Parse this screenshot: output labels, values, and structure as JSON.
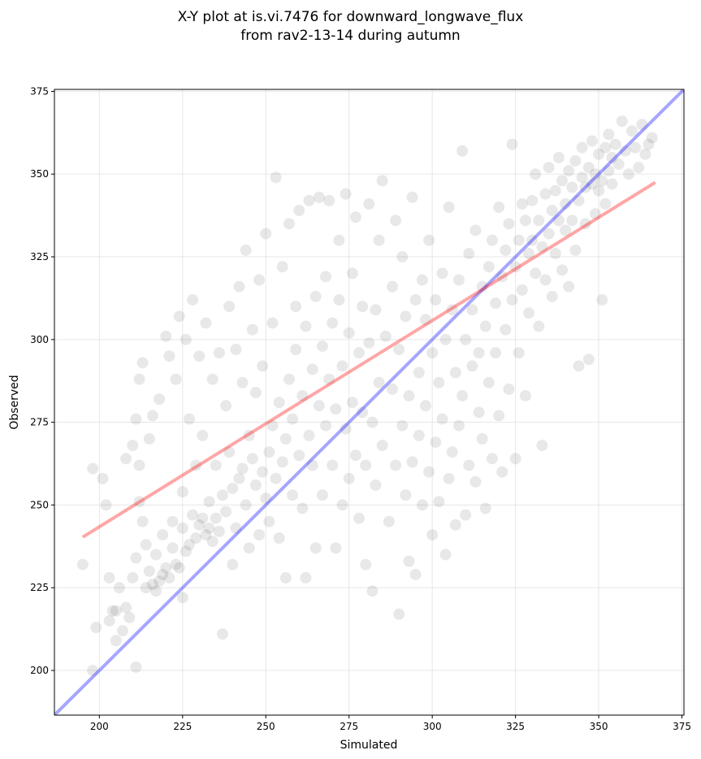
{
  "chart_data": {
    "type": "scatter",
    "title_line1": "X-Y plot at is.vi.7476 for downward_longwave_flux",
    "title_line2": "from rav2-13-14 during autumn",
    "xlabel": "Simulated",
    "ylabel": "Observed",
    "xlim": [
      186.5,
      375.6
    ],
    "ylim": [
      186.5,
      375.6
    ],
    "xticks": [
      200,
      225,
      250,
      275,
      300,
      325,
      350,
      375
    ],
    "yticks": [
      200,
      225,
      250,
      275,
      300,
      325,
      350,
      375
    ],
    "grid": true,
    "point_color": "#000000",
    "point_alpha": 0.09,
    "one_to_one_line": {
      "color": "#0000ff",
      "from": [
        186.5,
        186.5
      ],
      "to": [
        375.6,
        375.6
      ]
    },
    "regression_line": {
      "color": "#ff0000",
      "from": [
        195,
        240.3
      ],
      "to": [
        367,
        347.5
      ]
    },
    "points": [
      [
        195,
        232
      ],
      [
        198,
        200
      ],
      [
        198,
        261
      ],
      [
        199,
        213
      ],
      [
        201,
        258
      ],
      [
        202,
        250
      ],
      [
        203,
        215
      ],
      [
        203,
        228
      ],
      [
        204,
        218
      ],
      [
        205,
        209
      ],
      [
        205,
        218
      ],
      [
        206,
        225
      ],
      [
        207,
        212
      ],
      [
        208,
        264
      ],
      [
        208,
        219
      ],
      [
        209,
        216
      ],
      [
        210,
        228
      ],
      [
        210,
        268
      ],
      [
        211,
        201
      ],
      [
        211,
        234
      ],
      [
        211,
        276
      ],
      [
        212,
        288
      ],
      [
        212,
        251
      ],
      [
        212,
        262
      ],
      [
        213,
        245
      ],
      [
        213,
        293
      ],
      [
        214,
        225
      ],
      [
        214,
        238
      ],
      [
        215,
        230
      ],
      [
        215,
        270
      ],
      [
        216,
        226
      ],
      [
        216,
        277
      ],
      [
        217,
        224
      ],
      [
        217,
        235
      ],
      [
        218,
        227
      ],
      [
        218,
        282
      ],
      [
        219,
        229
      ],
      [
        219,
        241
      ],
      [
        220,
        231
      ],
      [
        220,
        301
      ],
      [
        221,
        228
      ],
      [
        221,
        295
      ],
      [
        222,
        237
      ],
      [
        222,
        245
      ],
      [
        223,
        232
      ],
      [
        223,
        288
      ],
      [
        224,
        231
      ],
      [
        224,
        307
      ],
      [
        225,
        222
      ],
      [
        225,
        243
      ],
      [
        225,
        254
      ],
      [
        226,
        236
      ],
      [
        226,
        300
      ],
      [
        227,
        238
      ],
      [
        227,
        276
      ],
      [
        228,
        247
      ],
      [
        228,
        312
      ],
      [
        229,
        240
      ],
      [
        229,
        262
      ],
      [
        230,
        244
      ],
      [
        230,
        295
      ],
      [
        231,
        246
      ],
      [
        231,
        271
      ],
      [
        232,
        241
      ],
      [
        232,
        305
      ],
      [
        233,
        243
      ],
      [
        233,
        251
      ],
      [
        234,
        239
      ],
      [
        234,
        288
      ],
      [
        235,
        246
      ],
      [
        235,
        262
      ],
      [
        236,
        242
      ],
      [
        236,
        296
      ],
      [
        237,
        211
      ],
      [
        237,
        253
      ],
      [
        238,
        248
      ],
      [
        238,
        280
      ],
      [
        239,
        266
      ],
      [
        239,
        310
      ],
      [
        240,
        255
      ],
      [
        240,
        232
      ],
      [
        241,
        243
      ],
      [
        241,
        297
      ],
      [
        242,
        258
      ],
      [
        242,
        316
      ],
      [
        243,
        261
      ],
      [
        243,
        287
      ],
      [
        244,
        250
      ],
      [
        244,
        327
      ],
      [
        245,
        237
      ],
      [
        245,
        271
      ],
      [
        246,
        264
      ],
      [
        246,
        303
      ],
      [
        247,
        256
      ],
      [
        247,
        284
      ],
      [
        248,
        241
      ],
      [
        248,
        318
      ],
      [
        249,
        260
      ],
      [
        249,
        292
      ],
      [
        250,
        252
      ],
      [
        250,
        332
      ],
      [
        251,
        266
      ],
      [
        251,
        245
      ],
      [
        252,
        274
      ],
      [
        252,
        305
      ],
      [
        253,
        258
      ],
      [
        253,
        349
      ],
      [
        254,
        281
      ],
      [
        254,
        240
      ],
      [
        255,
        263
      ],
      [
        255,
        322
      ],
      [
        256,
        270
      ],
      [
        256,
        228
      ],
      [
        257,
        288
      ],
      [
        257,
        335
      ],
      [
        258,
        276
      ],
      [
        258,
        253
      ],
      [
        259,
        297
      ],
      [
        259,
        310
      ],
      [
        260,
        265
      ],
      [
        260,
        339
      ],
      [
        261,
        249
      ],
      [
        261,
        283
      ],
      [
        262,
        304
      ],
      [
        262,
        228
      ],
      [
        263,
        271
      ],
      [
        263,
        342
      ],
      [
        264,
        291
      ],
      [
        264,
        262
      ],
      [
        265,
        313
      ],
      [
        265,
        237
      ],
      [
        266,
        280
      ],
      [
        266,
        343
      ],
      [
        267,
        253
      ],
      [
        267,
        298
      ],
      [
        268,
        319
      ],
      [
        268,
        274
      ],
      [
        269,
        288
      ],
      [
        269,
        342
      ],
      [
        270,
        262
      ],
      [
        270,
        305
      ],
      [
        271,
        237
      ],
      [
        271,
        279
      ],
      [
        272,
        312
      ],
      [
        272,
        330
      ],
      [
        273,
        292
      ],
      [
        273,
        250
      ],
      [
        274,
        273
      ],
      [
        274,
        344
      ],
      [
        275,
        302
      ],
      [
        275,
        258
      ],
      [
        276,
        281
      ],
      [
        276,
        320
      ],
      [
        277,
        265
      ],
      [
        277,
        337
      ],
      [
        278,
        296
      ],
      [
        278,
        246
      ],
      [
        279,
        278
      ],
      [
        279,
        310
      ],
      [
        280,
        232
      ],
      [
        280,
        262
      ],
      [
        281,
        299
      ],
      [
        281,
        341
      ],
      [
        282,
        275
      ],
      [
        282,
        224
      ],
      [
        283,
        309
      ],
      [
        283,
        256
      ],
      [
        284,
        287
      ],
      [
        284,
        330
      ],
      [
        285,
        268
      ],
      [
        285,
        348
      ],
      [
        286,
        301
      ],
      [
        287,
        245
      ],
      [
        288,
        285
      ],
      [
        288,
        316
      ],
      [
        289,
        262
      ],
      [
        289,
        336
      ],
      [
        290,
        217
      ],
      [
        290,
        297
      ],
      [
        291,
        274
      ],
      [
        291,
        325
      ],
      [
        292,
        253
      ],
      [
        292,
        307
      ],
      [
        293,
        233
      ],
      [
        293,
        283
      ],
      [
        294,
        263
      ],
      [
        294,
        343
      ],
      [
        295,
        229
      ],
      [
        295,
        312
      ],
      [
        296,
        271
      ],
      [
        296,
        290
      ],
      [
        297,
        250
      ],
      [
        297,
        318
      ],
      [
        298,
        280
      ],
      [
        298,
        306
      ],
      [
        299,
        260
      ],
      [
        299,
        330
      ],
      [
        300,
        241
      ],
      [
        300,
        296
      ],
      [
        301,
        269
      ],
      [
        301,
        312
      ],
      [
        302,
        251
      ],
      [
        302,
        287
      ],
      [
        303,
        276
      ],
      [
        303,
        320
      ],
      [
        304,
        235
      ],
      [
        304,
        300
      ],
      [
        305,
        258
      ],
      [
        305,
        340
      ],
      [
        306,
        266
      ],
      [
        306,
        309
      ],
      [
        307,
        244
      ],
      [
        307,
        290
      ],
      [
        308,
        274
      ],
      [
        308,
        318
      ],
      [
        309,
        283
      ],
      [
        309,
        357
      ],
      [
        310,
        247
      ],
      [
        310,
        300
      ],
      [
        311,
        262
      ],
      [
        311,
        326
      ],
      [
        312,
        292
      ],
      [
        312,
        309
      ],
      [
        313,
        257
      ],
      [
        313,
        333
      ],
      [
        314,
        278
      ],
      [
        314,
        296
      ],
      [
        315,
        270
      ],
      [
        315,
        316
      ],
      [
        316,
        249
      ],
      [
        316,
        304
      ],
      [
        317,
        287
      ],
      [
        317,
        322
      ],
      [
        318,
        264
      ],
      [
        318,
        330
      ],
      [
        319,
        296
      ],
      [
        319,
        311
      ],
      [
        320,
        277
      ],
      [
        320,
        340
      ],
      [
        321,
        260
      ],
      [
        321,
        319
      ],
      [
        322,
        303
      ],
      [
        322,
        327
      ],
      [
        323,
        285
      ],
      [
        323,
        335
      ],
      [
        324,
        312
      ],
      [
        324,
        359
      ],
      [
        325,
        264
      ],
      [
        325,
        322
      ],
      [
        326,
        330
      ],
      [
        326,
        296
      ],
      [
        327,
        315
      ],
      [
        327,
        341
      ],
      [
        328,
        336
      ],
      [
        328,
        283
      ],
      [
        329,
        326
      ],
      [
        329,
        308
      ],
      [
        330,
        342
      ],
      [
        330,
        330
      ],
      [
        331,
        320
      ],
      [
        331,
        350
      ],
      [
        332,
        336
      ],
      [
        332,
        304
      ],
      [
        333,
        328
      ],
      [
        333,
        268
      ],
      [
        334,
        344
      ],
      [
        334,
        318
      ],
      [
        335,
        332
      ],
      [
        335,
        352
      ],
      [
        336,
        339
      ],
      [
        336,
        313
      ],
      [
        337,
        345
      ],
      [
        337,
        326
      ],
      [
        338,
        336
      ],
      [
        338,
        355
      ],
      [
        339,
        348
      ],
      [
        339,
        321
      ],
      [
        340,
        341
      ],
      [
        340,
        333
      ],
      [
        341,
        351
      ],
      [
        341,
        316
      ],
      [
        342,
        346
      ],
      [
        342,
        336
      ],
      [
        343,
        354
      ],
      [
        343,
        327
      ],
      [
        344,
        342
      ],
      [
        344,
        292
      ],
      [
        345,
        349
      ],
      [
        345,
        358
      ],
      [
        346,
        346
      ],
      [
        346,
        335
      ],
      [
        347,
        352
      ],
      [
        347,
        294
      ],
      [
        348,
        347
      ],
      [
        348,
        360
      ],
      [
        349,
        350
      ],
      [
        349,
        338
      ],
      [
        350,
        356
      ],
      [
        350,
        345
      ],
      [
        351,
        348
      ],
      [
        351,
        312
      ],
      [
        352,
        358
      ],
      [
        352,
        341
      ],
      [
        353,
        351
      ],
      [
        353,
        362
      ],
      [
        354,
        355
      ],
      [
        354,
        347
      ],
      [
        355,
        359
      ],
      [
        356,
        353
      ],
      [
        357,
        366
      ],
      [
        358,
        357
      ],
      [
        359,
        350
      ],
      [
        360,
        363
      ],
      [
        361,
        358
      ],
      [
        362,
        352
      ],
      [
        363,
        365
      ],
      [
        364,
        356
      ],
      [
        365,
        359
      ],
      [
        366,
        361
      ]
    ]
  }
}
